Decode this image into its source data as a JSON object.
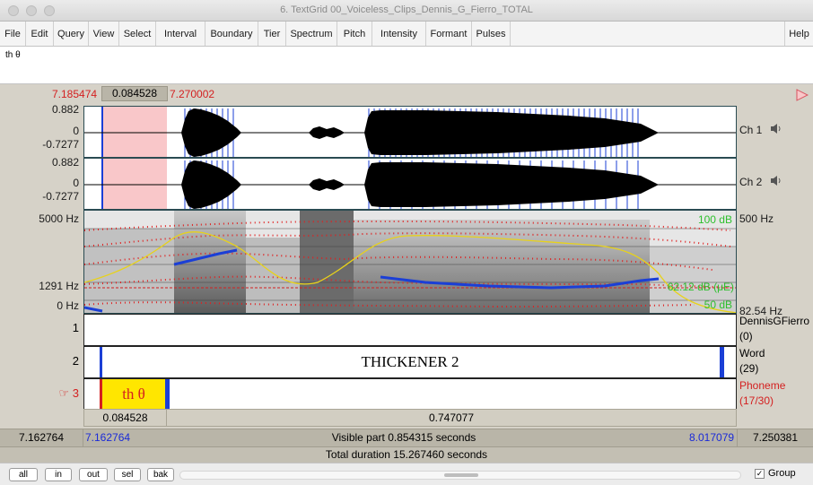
{
  "window": {
    "title": "6. TextGrid 00_Voiceless_Clips_Dennis_G_Fierro_TOTAL"
  },
  "menu": [
    "File",
    "Edit",
    "Query",
    "View",
    "Select",
    "Interval",
    "Boundary",
    "Tier",
    "Spectrum",
    "Pitch",
    "Intensity",
    "Formant",
    "Pulses"
  ],
  "menu_help": "Help",
  "text_field": "th θ",
  "selection": {
    "start": "7.185474",
    "duration": "0.084528",
    "end": "7.270002"
  },
  "channels": [
    {
      "max": "0.882",
      "zero": "0",
      "min": "-0.7277",
      "name": "Ch 1"
    },
    {
      "max": "0.882",
      "zero": "0",
      "min": "-0.7277",
      "name": "Ch 2"
    }
  ],
  "spectrogram": {
    "freq_top": "5000 Hz",
    "freq_cursor": "1291 Hz",
    "freq_bottom": "0 Hz",
    "intensity_top": "100 dB",
    "intensity_cursor": "62.12 dB (μE)",
    "intensity_bottom": "50 dB",
    "pitch_top": "500 Hz",
    "pitch_bottom": "82.54 Hz"
  },
  "tiers": [
    {
      "number": "1",
      "name": "DennisGFierro",
      "count": "(0)",
      "text": ""
    },
    {
      "number": "2",
      "name": "Word",
      "count": "(29)",
      "text": "THICKENER 2"
    },
    {
      "number": "3",
      "name": "Phoneme",
      "count": "(17/30)",
      "text": "th θ",
      "pointer": "☞"
    }
  ],
  "bottom_selection": {
    "left_duration": "0.084528",
    "right_duration": "0.747077"
  },
  "visible": {
    "window_start": "7.162764",
    "start": "7.162764",
    "label": "Visible part 0.854315 seconds",
    "end": "8.017079",
    "window_end": "7.250381"
  },
  "total_duration": "Total duration 15.267460 seconds",
  "buttons": [
    "all",
    "in",
    "out",
    "sel",
    "bak"
  ],
  "group": {
    "label": "Group",
    "checked": "✓"
  },
  "colors": {
    "selection": "#f9c7c9",
    "pitch": "#1b3fd6",
    "formant": "#e02020",
    "intensity": "#e8d21a",
    "phoneme_highlight": "#ffe600"
  }
}
